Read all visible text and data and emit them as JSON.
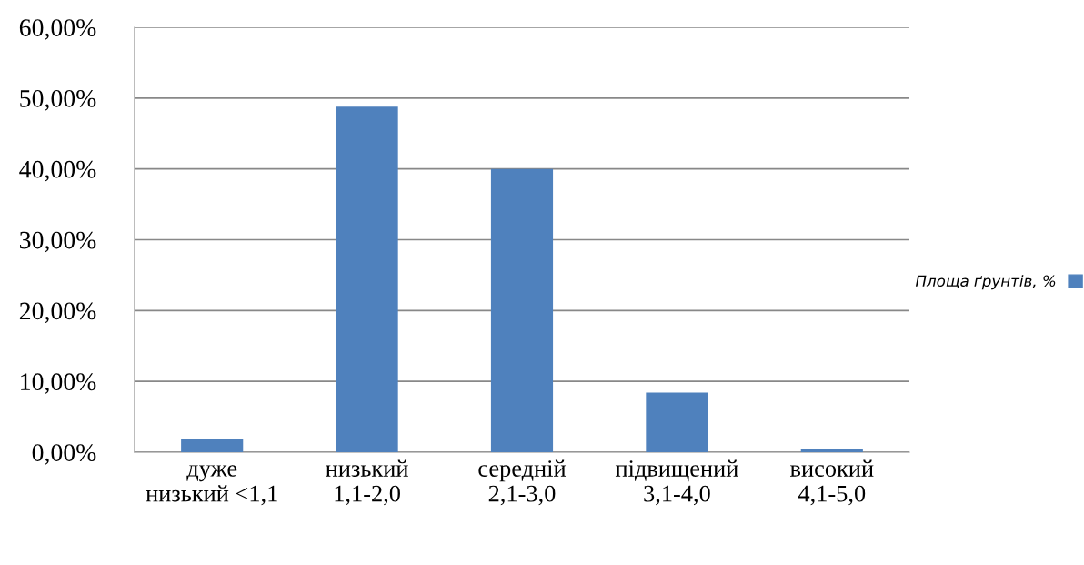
{
  "chart_data": {
    "type": "bar",
    "categories": [
      "дуже низький <1,1",
      "низький 1,1-2,0",
      "середній 2,1-3,0",
      "підвищений 3,1-4,0",
      "високий 4,1-5,0"
    ],
    "series": [
      {
        "name": "Площа ґрунтів, %",
        "color": "#4f81bd",
        "values": [
          1.9,
          48.8,
          40.0,
          8.4,
          0.4
        ]
      }
    ],
    "ylim": [
      0,
      60
    ],
    "yticks": [
      {
        "value": 0,
        "label": "0,00%"
      },
      {
        "value": 10,
        "label": "10,00%"
      },
      {
        "value": 20,
        "label": "20,00%"
      },
      {
        "value": 30,
        "label": "30,00%"
      },
      {
        "value": 40,
        "label": "40,00%"
      },
      {
        "value": 50,
        "label": "50,00%"
      },
      {
        "value": 60,
        "label": "60,00%"
      }
    ],
    "grid": "y",
    "legend": "right"
  }
}
